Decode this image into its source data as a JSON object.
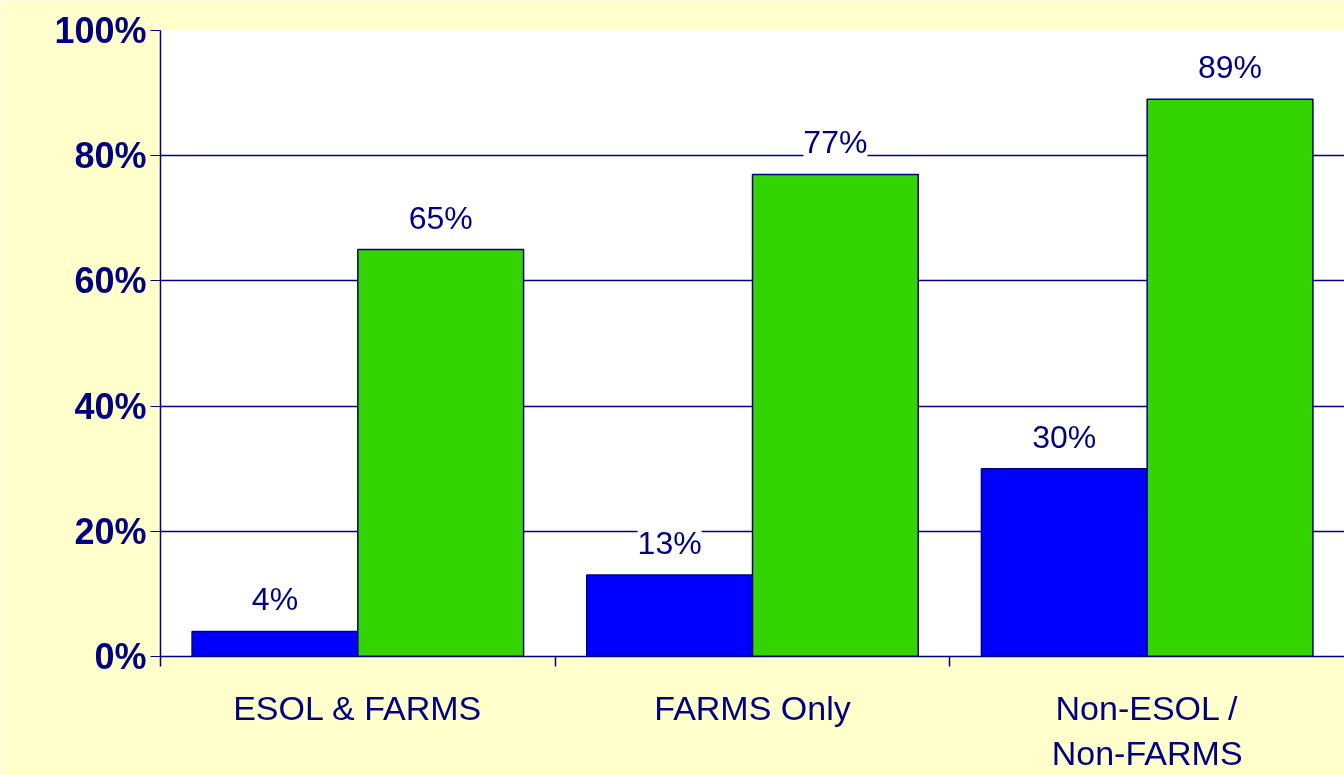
{
  "chart_data": {
    "type": "bar",
    "categories": [
      "ESOL & FARMS",
      "FARMS Only",
      "Non-ESOL / Non-FARMS"
    ],
    "series": [
      {
        "color": "#0000ff",
        "values": [
          4,
          13,
          30
        ],
        "value_labels": [
          "4%",
          "13%",
          "30%"
        ]
      },
      {
        "color": "#33d400",
        "values": [
          65,
          77,
          89
        ],
        "value_labels": [
          "65%",
          "77%",
          "89%"
        ]
      }
    ],
    "ylim": [
      0,
      100
    ],
    "yticks": [
      {
        "value": 0,
        "label": "0%"
      },
      {
        "value": 20,
        "label": "20%"
      },
      {
        "value": 40,
        "label": "40%"
      },
      {
        "value": 60,
        "label": "60%"
      },
      {
        "value": 80,
        "label": "80%"
      },
      {
        "value": 100,
        "label": "100%"
      }
    ],
    "grid": "y"
  }
}
